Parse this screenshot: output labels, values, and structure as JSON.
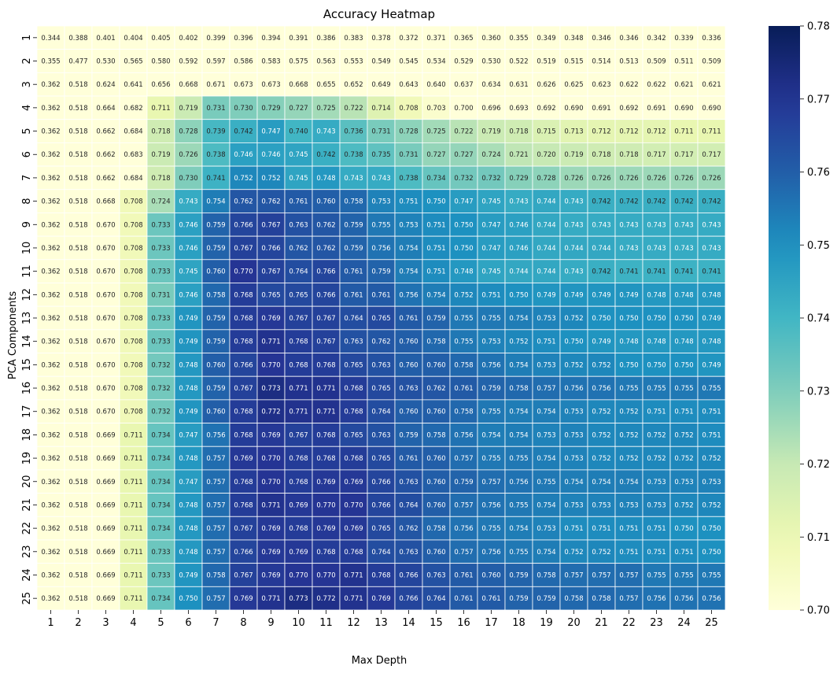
{
  "chart_data": {
    "type": "heatmap",
    "title": "Accuracy Heatmap",
    "xlabel": "Max Depth",
    "ylabel": "PCA Components",
    "x_categories": [
      "1",
      "2",
      "3",
      "4",
      "5",
      "6",
      "7",
      "8",
      "9",
      "10",
      "11",
      "12",
      "13",
      "14",
      "15",
      "16",
      "17",
      "18",
      "19",
      "20",
      "21",
      "22",
      "23",
      "24",
      "25"
    ],
    "y_categories": [
      "1",
      "2",
      "3",
      "4",
      "5",
      "6",
      "7",
      "8",
      "9",
      "10",
      "11",
      "12",
      "13",
      "14",
      "15",
      "16",
      "17",
      "18",
      "19",
      "20",
      "21",
      "22",
      "23",
      "24",
      "25"
    ],
    "colorbar": {
      "min": 0.7,
      "max": 0.78,
      "ticks": [
        "0.70",
        "0.71",
        "0.72",
        "0.73",
        "0.74",
        "0.75",
        "0.76",
        "0.77",
        "0.78"
      ],
      "colormap": "YlGnBu"
    },
    "values": [
      [
        0.344,
        0.388,
        0.401,
        0.404,
        0.405,
        0.402,
        0.399,
        0.396,
        0.394,
        0.391,
        0.386,
        0.383,
        0.378,
        0.372,
        0.371,
        0.365,
        0.36,
        0.355,
        0.349,
        0.348,
        0.346,
        0.346,
        0.342,
        0.339,
        0.336
      ],
      [
        0.355,
        0.477,
        0.53,
        0.565,
        0.58,
        0.592,
        0.597,
        0.586,
        0.583,
        0.575,
        0.563,
        0.553,
        0.549,
        0.545,
        0.534,
        0.529,
        0.53,
        0.522,
        0.519,
        0.515,
        0.514,
        0.513,
        0.509,
        0.511,
        0.509
      ],
      [
        0.362,
        0.518,
        0.624,
        0.641,
        0.656,
        0.668,
        0.671,
        0.673,
        0.673,
        0.668,
        0.655,
        0.652,
        0.649,
        0.643,
        0.64,
        0.637,
        0.634,
        0.631,
        0.626,
        0.625,
        0.623,
        0.622,
        0.622,
        0.621,
        0.621
      ],
      [
        0.362,
        0.518,
        0.664,
        0.682,
        0.711,
        0.719,
        0.731,
        0.73,
        0.729,
        0.727,
        0.725,
        0.722,
        0.714,
        0.708,
        0.703,
        0.7,
        0.696,
        0.693,
        0.692,
        0.69,
        0.691,
        0.692,
        0.691,
        0.69,
        0.69
      ],
      [
        0.362,
        0.518,
        0.662,
        0.684,
        0.718,
        0.728,
        0.739,
        0.742,
        0.747,
        0.74,
        0.743,
        0.736,
        0.731,
        0.728,
        0.725,
        0.722,
        0.719,
        0.718,
        0.715,
        0.713,
        0.712,
        0.712,
        0.712,
        0.711,
        0.711
      ],
      [
        0.362,
        0.518,
        0.662,
        0.683,
        0.719,
        0.726,
        0.738,
        0.746,
        0.746,
        0.745,
        0.742,
        0.738,
        0.735,
        0.731,
        0.727,
        0.727,
        0.724,
        0.721,
        0.72,
        0.719,
        0.718,
        0.718,
        0.717,
        0.717,
        0.717
      ],
      [
        0.362,
        0.518,
        0.662,
        0.684,
        0.718,
        0.73,
        0.741,
        0.752,
        0.752,
        0.745,
        0.748,
        0.743,
        0.743,
        0.738,
        0.734,
        0.732,
        0.732,
        0.729,
        0.728,
        0.726,
        0.726,
        0.726,
        0.726,
        0.726,
        0.726
      ],
      [
        0.362,
        0.518,
        0.668,
        0.708,
        0.724,
        0.743,
        0.754,
        0.762,
        0.762,
        0.761,
        0.76,
        0.758,
        0.753,
        0.751,
        0.75,
        0.747,
        0.745,
        0.743,
        0.744,
        0.743,
        0.742,
        0.742,
        0.742,
        0.742,
        0.742
      ],
      [
        0.362,
        0.518,
        0.67,
        0.708,
        0.733,
        0.746,
        0.759,
        0.766,
        0.767,
        0.763,
        0.762,
        0.759,
        0.755,
        0.753,
        0.751,
        0.75,
        0.747,
        0.746,
        0.744,
        0.743,
        0.743,
        0.743,
        0.743,
        0.743,
        0.743
      ],
      [
        0.362,
        0.518,
        0.67,
        0.708,
        0.733,
        0.746,
        0.759,
        0.767,
        0.766,
        0.762,
        0.762,
        0.759,
        0.756,
        0.754,
        0.751,
        0.75,
        0.747,
        0.746,
        0.744,
        0.744,
        0.744,
        0.743,
        0.743,
        0.743,
        0.743
      ],
      [
        0.362,
        0.518,
        0.67,
        0.708,
        0.733,
        0.745,
        0.76,
        0.77,
        0.767,
        0.764,
        0.766,
        0.761,
        0.759,
        0.754,
        0.751,
        0.748,
        0.745,
        0.744,
        0.744,
        0.743,
        0.742,
        0.741,
        0.741,
        0.741,
        0.741
      ],
      [
        0.362,
        0.518,
        0.67,
        0.708,
        0.731,
        0.746,
        0.758,
        0.768,
        0.765,
        0.765,
        0.766,
        0.761,
        0.761,
        0.756,
        0.754,
        0.752,
        0.751,
        0.75,
        0.749,
        0.749,
        0.749,
        0.749,
        0.748,
        0.748,
        0.748
      ],
      [
        0.362,
        0.518,
        0.67,
        0.708,
        0.733,
        0.749,
        0.759,
        0.768,
        0.769,
        0.767,
        0.767,
        0.764,
        0.765,
        0.761,
        0.759,
        0.755,
        0.755,
        0.754,
        0.753,
        0.752,
        0.75,
        0.75,
        0.75,
        0.75,
        0.749
      ],
      [
        0.362,
        0.518,
        0.67,
        0.708,
        0.733,
        0.749,
        0.759,
        0.768,
        0.771,
        0.768,
        0.767,
        0.763,
        0.762,
        0.76,
        0.758,
        0.755,
        0.753,
        0.752,
        0.751,
        0.75,
        0.749,
        0.748,
        0.748,
        0.748,
        0.748
      ],
      [
        0.362,
        0.518,
        0.67,
        0.708,
        0.732,
        0.748,
        0.76,
        0.766,
        0.77,
        0.768,
        0.768,
        0.765,
        0.763,
        0.76,
        0.76,
        0.758,
        0.756,
        0.754,
        0.753,
        0.752,
        0.752,
        0.75,
        0.75,
        0.75,
        0.749
      ],
      [
        0.362,
        0.518,
        0.67,
        0.708,
        0.732,
        0.748,
        0.759,
        0.767,
        0.773,
        0.771,
        0.771,
        0.768,
        0.765,
        0.763,
        0.762,
        0.761,
        0.759,
        0.758,
        0.757,
        0.756,
        0.756,
        0.755,
        0.755,
        0.755,
        0.755
      ],
      [
        0.362,
        0.518,
        0.67,
        0.708,
        0.732,
        0.749,
        0.76,
        0.768,
        0.772,
        0.771,
        0.771,
        0.768,
        0.764,
        0.76,
        0.76,
        0.758,
        0.755,
        0.754,
        0.754,
        0.753,
        0.752,
        0.752,
        0.751,
        0.751,
        0.751
      ],
      [
        0.362,
        0.518,
        0.669,
        0.711,
        0.734,
        0.747,
        0.756,
        0.768,
        0.769,
        0.767,
        0.768,
        0.765,
        0.763,
        0.759,
        0.758,
        0.756,
        0.754,
        0.754,
        0.753,
        0.753,
        0.752,
        0.752,
        0.752,
        0.752,
        0.751
      ],
      [
        0.362,
        0.518,
        0.669,
        0.711,
        0.734,
        0.748,
        0.757,
        0.769,
        0.77,
        0.768,
        0.768,
        0.768,
        0.765,
        0.761,
        0.76,
        0.757,
        0.755,
        0.755,
        0.754,
        0.753,
        0.752,
        0.752,
        0.752,
        0.752,
        0.752
      ],
      [
        0.362,
        0.518,
        0.669,
        0.711,
        0.734,
        0.747,
        0.757,
        0.768,
        0.77,
        0.768,
        0.769,
        0.769,
        0.766,
        0.763,
        0.76,
        0.759,
        0.757,
        0.756,
        0.755,
        0.754,
        0.754,
        0.754,
        0.753,
        0.753,
        0.753
      ],
      [
        0.362,
        0.518,
        0.669,
        0.711,
        0.734,
        0.748,
        0.757,
        0.768,
        0.771,
        0.769,
        0.77,
        0.77,
        0.766,
        0.764,
        0.76,
        0.757,
        0.756,
        0.755,
        0.754,
        0.753,
        0.753,
        0.753,
        0.753,
        0.752,
        0.752
      ],
      [
        0.362,
        0.518,
        0.669,
        0.711,
        0.734,
        0.748,
        0.757,
        0.767,
        0.769,
        0.768,
        0.769,
        0.769,
        0.765,
        0.762,
        0.758,
        0.756,
        0.755,
        0.754,
        0.753,
        0.751,
        0.751,
        0.751,
        0.751,
        0.75,
        0.75
      ],
      [
        0.362,
        0.518,
        0.669,
        0.711,
        0.733,
        0.748,
        0.757,
        0.766,
        0.769,
        0.769,
        0.768,
        0.768,
        0.764,
        0.763,
        0.76,
        0.757,
        0.756,
        0.755,
        0.754,
        0.752,
        0.752,
        0.751,
        0.751,
        0.751,
        0.75
      ],
      [
        0.362,
        0.518,
        0.669,
        0.711,
        0.733,
        0.749,
        0.758,
        0.767,
        0.769,
        0.77,
        0.77,
        0.771,
        0.768,
        0.766,
        0.763,
        0.761,
        0.76,
        0.759,
        0.758,
        0.757,
        0.757,
        0.757,
        0.755,
        0.755,
        0.755
      ],
      [
        0.362,
        0.518,
        0.669,
        0.711,
        0.734,
        0.75,
        0.757,
        0.769,
        0.771,
        0.773,
        0.772,
        0.771,
        0.769,
        0.766,
        0.764,
        0.761,
        0.761,
        0.759,
        0.759,
        0.758,
        0.758,
        0.757,
        0.756,
        0.756,
        0.756
      ]
    ]
  }
}
